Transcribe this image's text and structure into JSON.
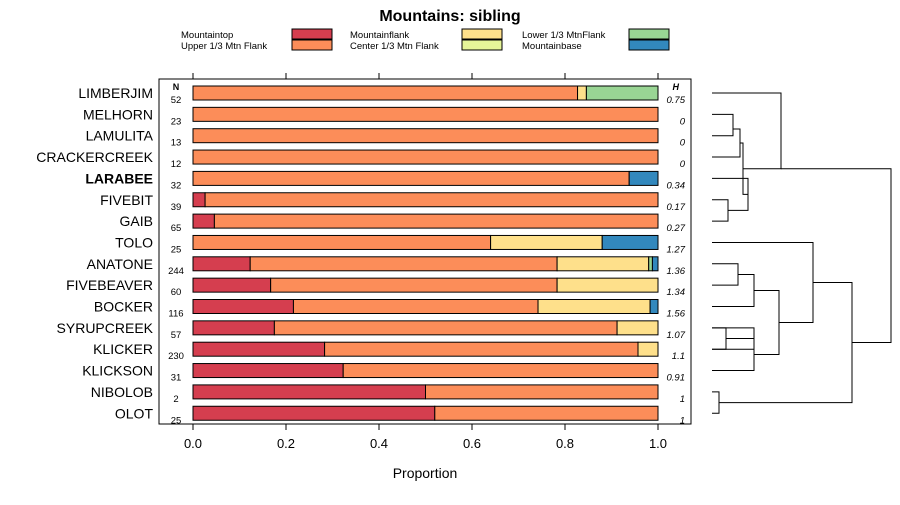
{
  "chart_data": {
    "type": "bar",
    "stacked": true,
    "orientation": "horizontal",
    "title": "Mountains: sibling",
    "xlabel": "Proportion",
    "xlim": [
      0,
      1
    ],
    "xticks": [
      "0.0",
      "0.2",
      "0.4",
      "0.6",
      "0.8",
      "1.0"
    ],
    "n_header": "N",
    "h_header": "H",
    "legend": [
      {
        "name": "Mountaintop",
        "color": "#d53e4f"
      },
      {
        "name": "Upper 1/3 Mtn Flank",
        "color": "#fc8d59"
      },
      {
        "name": "Mountainflank",
        "color": "#fee08b"
      },
      {
        "name": "Center 1/3 Mtn Flank",
        "color": "#e6f598"
      },
      {
        "name": "Lower 1/3 MtnFlank",
        "color": "#99d594"
      },
      {
        "name": "Mountainbase",
        "color": "#3288bd"
      }
    ],
    "categories": [
      {
        "name": "LIMBERJIM",
        "n": "52",
        "h": "0.75",
        "bold": false,
        "values": [
          0,
          0.827,
          0.019,
          0,
          0.154,
          0
        ]
      },
      {
        "name": "MELHORN",
        "n": "23",
        "h": "0",
        "bold": false,
        "values": [
          0,
          1,
          0,
          0,
          0,
          0
        ]
      },
      {
        "name": "LAMULITA",
        "n": "13",
        "h": "0",
        "bold": false,
        "values": [
          0,
          1,
          0,
          0,
          0,
          0
        ]
      },
      {
        "name": "CRACKERCREEK",
        "n": "12",
        "h": "0",
        "bold": false,
        "values": [
          0,
          1,
          0,
          0,
          0,
          0
        ]
      },
      {
        "name": "LARABEE",
        "n": "32",
        "h": "0.34",
        "bold": true,
        "values": [
          0,
          0.938,
          0,
          0,
          0,
          0.062
        ]
      },
      {
        "name": "FIVEBIT",
        "n": "39",
        "h": "0.17",
        "bold": false,
        "values": [
          0.026,
          0.974,
          0,
          0,
          0,
          0
        ]
      },
      {
        "name": "GAIB",
        "n": "65",
        "h": "0.27",
        "bold": false,
        "values": [
          0.046,
          0.954,
          0,
          0,
          0,
          0
        ]
      },
      {
        "name": "TOLO",
        "n": "25",
        "h": "1.27",
        "bold": false,
        "values": [
          0,
          0.64,
          0.24,
          0,
          0,
          0.12
        ]
      },
      {
        "name": "ANATONE",
        "n": "244",
        "h": "1.36",
        "bold": false,
        "values": [
          0.123,
          0.66,
          0.197,
          0,
          0.008,
          0.012
        ]
      },
      {
        "name": "FIVEBEAVER",
        "n": "60",
        "h": "1.34",
        "bold": false,
        "values": [
          0.167,
          0.616,
          0.217,
          0,
          0,
          0
        ]
      },
      {
        "name": "BOCKER",
        "n": "116",
        "h": "1.56",
        "bold": false,
        "values": [
          0.216,
          0.526,
          0.241,
          0,
          0,
          0.017
        ]
      },
      {
        "name": "SYRUPCREEK",
        "n": "57",
        "h": "1.07",
        "bold": false,
        "values": [
          0.175,
          0.737,
          0.088,
          0,
          0,
          0
        ]
      },
      {
        "name": "KLICKER",
        "n": "230",
        "h": "1.1",
        "bold": false,
        "values": [
          0.283,
          0.674,
          0.043,
          0,
          0,
          0
        ]
      },
      {
        "name": "KLICKSON",
        "n": "31",
        "h": "0.91",
        "bold": false,
        "values": [
          0.323,
          0.677,
          0,
          0,
          0,
          0
        ]
      },
      {
        "name": "NIBOLOB",
        "n": "2",
        "h": "1",
        "bold": false,
        "values": [
          0.5,
          0.5,
          0,
          0,
          0,
          0
        ]
      },
      {
        "name": "OLOT",
        "n": "25",
        "h": "1",
        "bold": false,
        "values": [
          0.52,
          0.48,
          0,
          0,
          0,
          0
        ]
      }
    ]
  }
}
